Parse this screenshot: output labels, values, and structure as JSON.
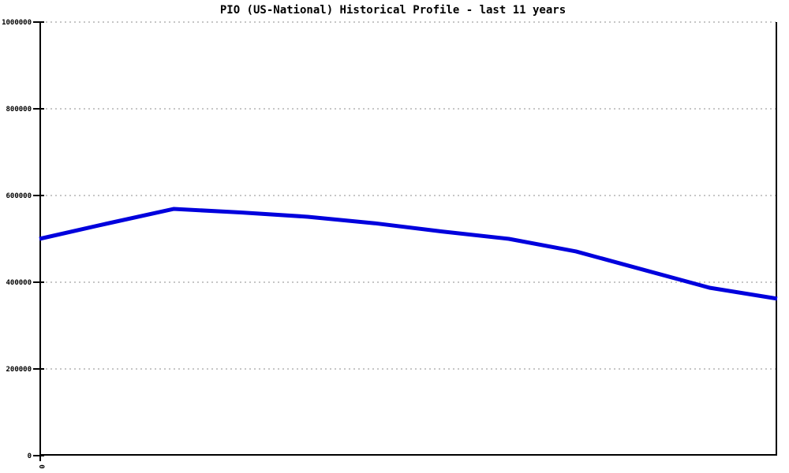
{
  "title": "PIO (US-National) Historical Profile - last 11 years",
  "colors": {
    "background": "#ffffff",
    "title_text": "#000000",
    "axis": "#000000",
    "gridline": "#b4b4b4",
    "line": "#0000dd"
  },
  "y_axis": {
    "tick_labels": [
      "0",
      "200000",
      "400000",
      "600000",
      "800000",
      "1000000"
    ],
    "tick_values": [
      0,
      200000,
      400000,
      600000,
      800000,
      1000000
    ]
  },
  "x_axis": {
    "tick_labels": [
      "0"
    ],
    "tick_label_rotation_deg": 90
  },
  "chart_data": {
    "type": "line",
    "title": "PIO (US-National) Historical Profile - last 11 years",
    "xlabel": "",
    "ylabel": "",
    "x": [
      0,
      1,
      2,
      3,
      4,
      5,
      6,
      7,
      8,
      9,
      10,
      11
    ],
    "values": [
      500000,
      535000,
      569000,
      561000,
      551000,
      536000,
      517000,
      500000,
      471000,
      429000,
      387000,
      362000
    ],
    "ylim": [
      0,
      1000000
    ],
    "grid": true,
    "grid_style": "dotted",
    "legend_position": "none",
    "line_color": "#0000dd",
    "line_width": 5
  }
}
